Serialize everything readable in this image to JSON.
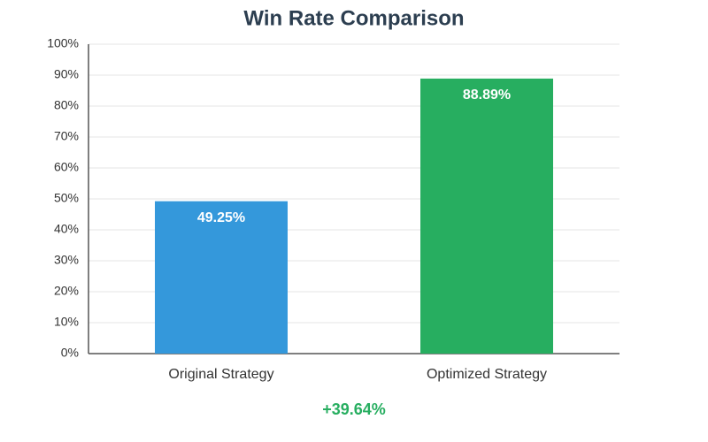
{
  "chart_data": {
    "type": "bar",
    "title": "Win Rate Comparison",
    "categories": [
      "Original Strategy",
      "Optimized Strategy"
    ],
    "values": [
      49.25,
      88.89
    ],
    "value_labels": [
      "49.25%",
      "88.89%"
    ],
    "colors": [
      "#3498db",
      "#27ae60"
    ],
    "ylim": [
      0,
      100
    ],
    "yticks": [
      {
        "value": 0,
        "label": "0%"
      },
      {
        "value": 10,
        "label": "10%"
      },
      {
        "value": 20,
        "label": "20%"
      },
      {
        "value": 30,
        "label": "30%"
      },
      {
        "value": 40,
        "label": "40%"
      },
      {
        "value": 50,
        "label": "50%"
      },
      {
        "value": 60,
        "label": "60%"
      },
      {
        "value": 70,
        "label": "70%"
      },
      {
        "value": 80,
        "label": "80%"
      },
      {
        "value": 90,
        "label": "90%"
      },
      {
        "value": 100,
        "label": "100%"
      }
    ],
    "grid": true,
    "annotation": "+39.64%",
    "annotation_color": "#27ae60"
  }
}
